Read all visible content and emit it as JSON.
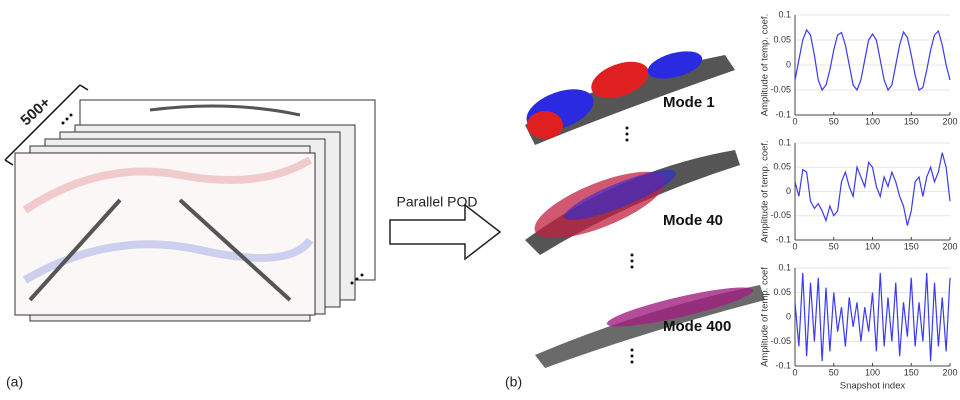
{
  "figure": {
    "count_label": "500+",
    "arrow_label": "Parallel POD",
    "panel_a": "(a)",
    "panel_b": "(b)",
    "modes": [
      "Mode 1",
      "Mode 40",
      "Mode 400"
    ]
  },
  "chart_data": [
    {
      "type": "line",
      "ylabel": "Amplitude of temp. coef.",
      "color": "#3a3af0",
      "x": [
        0,
        5,
        10,
        15,
        20,
        25,
        30,
        35,
        40,
        45,
        50,
        55,
        60,
        65,
        70,
        75,
        80,
        85,
        90,
        95,
        100,
        105,
        110,
        115,
        120,
        125,
        130,
        135,
        140,
        145,
        150,
        155,
        160,
        165,
        170,
        175,
        180,
        185,
        190,
        195,
        200
      ],
      "values": [
        -0.03,
        0.01,
        0.05,
        0.07,
        0.06,
        0.02,
        -0.03,
        -0.05,
        -0.04,
        -0.01,
        0.03,
        0.06,
        0.065,
        0.04,
        0,
        -0.04,
        -0.05,
        -0.03,
        0.01,
        0.05,
        0.062,
        0.05,
        0.01,
        -0.03,
        -0.05,
        -0.04,
        0,
        0.04,
        0.066,
        0.055,
        0.02,
        -0.02,
        -0.05,
        -0.045,
        -0.01,
        0.03,
        0.06,
        0.068,
        0.04,
        0,
        -0.03
      ],
      "xlim": [
        0,
        200
      ],
      "xticks": [
        0,
        50,
        100,
        150,
        200
      ],
      "ylim": [
        -0.1,
        0.1
      ],
      "yticks": [
        -0.1,
        -0.05,
        0,
        0.05,
        0.1
      ]
    },
    {
      "type": "line",
      "ylabel": "Amplitude of temp. coef.",
      "color": "#3a3af0",
      "x": [
        0,
        5,
        10,
        15,
        20,
        25,
        30,
        35,
        40,
        45,
        50,
        55,
        60,
        65,
        70,
        75,
        80,
        85,
        90,
        95,
        100,
        105,
        110,
        115,
        120,
        125,
        130,
        135,
        140,
        145,
        150,
        155,
        160,
        165,
        170,
        175,
        180,
        185,
        190,
        195,
        200
      ],
      "values": [
        0.02,
        -0.01,
        0.045,
        0.04,
        -0.02,
        -0.035,
        -0.025,
        -0.04,
        -0.06,
        -0.03,
        -0.05,
        -0.04,
        0.02,
        0.04,
        0.01,
        -0.01,
        0.05,
        0.03,
        0.01,
        0.06,
        0.05,
        0.01,
        -0.01,
        0.03,
        0.01,
        0.04,
        0.02,
        -0.01,
        -0.03,
        -0.07,
        -0.04,
        0.02,
        0.03,
        -0.01,
        0.03,
        0.05,
        0.02,
        0.04,
        0.08,
        0.05,
        -0.02
      ],
      "xlim": [
        0,
        200
      ],
      "xticks": [
        0,
        50,
        100,
        150,
        200
      ],
      "ylim": [
        -0.1,
        0.1
      ],
      "yticks": [
        -0.1,
        -0.05,
        0,
        0.05,
        0.1
      ]
    },
    {
      "type": "line",
      "ylabel": "Amplitude of temp. coef",
      "xlabel": "Snapshot index",
      "color": "#3a3af0",
      "x": [
        0,
        5,
        10,
        15,
        20,
        25,
        30,
        35,
        40,
        45,
        50,
        55,
        60,
        65,
        70,
        75,
        80,
        85,
        90,
        95,
        100,
        105,
        110,
        115,
        120,
        125,
        130,
        135,
        140,
        145,
        150,
        155,
        160,
        165,
        170,
        175,
        180,
        185,
        190,
        195,
        200
      ],
      "values": [
        0.03,
        -0.06,
        0.09,
        -0.08,
        0.07,
        -0.05,
        0.08,
        -0.09,
        0.06,
        -0.07,
        0.05,
        -0.03,
        0.02,
        -0.06,
        0.04,
        -0.02,
        0.03,
        -0.05,
        0.02,
        -0.03,
        0.05,
        -0.07,
        0.09,
        -0.06,
        0.04,
        -0.05,
        0.07,
        -0.08,
        0.03,
        -0.04,
        0.08,
        -0.06,
        0.03,
        -0.05,
        0.09,
        -0.09,
        0.07,
        -0.06,
        0.04,
        -0.07,
        0.08
      ],
      "xlim": [
        0,
        200
      ],
      "xticks": [
        0,
        50,
        100,
        150,
        200
      ],
      "ylim": [
        -0.1,
        0.1
      ],
      "yticks": [
        -0.1,
        -0.05,
        0,
        0.05,
        0.1
      ]
    }
  ]
}
